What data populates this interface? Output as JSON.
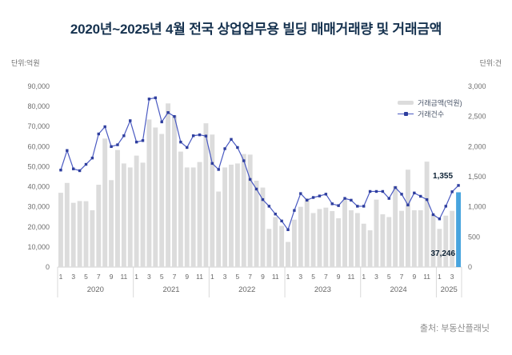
{
  "title": "2020년~2025년 4월 전국 상업업무용 빌딩 매매거래량 및 거래금액",
  "unit_left": "단위:억원",
  "unit_right": "단위:건",
  "source": "출처: 부동산플래닛",
  "legend": {
    "amount_label": "거래금액(억원)",
    "count_label": "거래건수"
  },
  "annotations": {
    "last_count": "1,355",
    "last_amount": "37,246"
  },
  "colors": {
    "bar": "#dcdcdc",
    "bar_highlight": "#48a4de",
    "line": "#4a5ac2",
    "marker": "#2e3e9e",
    "axis_line": "#cfcfcf",
    "separator": "#d9d9d9",
    "tick_text": "#6e6e6e",
    "month_text": "#666666",
    "title_text": "#16324f",
    "annotation_text": "#0d2235"
  },
  "chart_data": {
    "type": "bar",
    "subtype": "bar+line-combo",
    "title": "2020년~2025년 4월 전국 상업업무용 빌딩 매매거래량 및 거래금액",
    "x_groups": [
      {
        "year": "2020",
        "n_months": 12,
        "month_ticks": [
          1,
          3,
          5,
          7,
          9,
          11
        ]
      },
      {
        "year": "2021",
        "n_months": 12,
        "month_ticks": [
          1,
          3,
          5,
          7,
          9,
          11
        ]
      },
      {
        "year": "2022",
        "n_months": 12,
        "month_ticks": [
          1,
          3,
          5,
          7,
          9,
          11
        ]
      },
      {
        "year": "2023",
        "n_months": 12,
        "month_ticks": [
          1,
          3,
          5,
          7,
          9,
          11
        ]
      },
      {
        "year": "2024",
        "n_months": 12,
        "month_ticks": [
          1,
          3,
          5,
          7,
          9,
          11
        ]
      },
      {
        "year": "2025",
        "n_months": 4,
        "month_ticks": [
          1,
          3
        ]
      }
    ],
    "left_axis": {
      "label": "단위:억원",
      "min": 0,
      "max": 90000,
      "step": 10000
    },
    "right_axis": {
      "label": "단위:건",
      "min": 0,
      "max": 3000,
      "step": 500
    },
    "grid": false,
    "legend_position": "top-right",
    "highlight_last_bar": true,
    "last_point_labels": {
      "count": "1,355",
      "amount": "37,246"
    },
    "series": [
      {
        "name": "거래금액(억원)",
        "type": "bar",
        "axis": "left",
        "values": [
          37000,
          41900,
          32000,
          32900,
          32800,
          28300,
          41000,
          64000,
          43300,
          58300,
          51600,
          49600,
          55500,
          52000,
          73500,
          69500,
          66300,
          81500,
          75500,
          57500,
          49600,
          49600,
          52300,
          71600,
          66000,
          37600,
          49600,
          51000,
          51600,
          56300,
          56000,
          43000,
          39600,
          19000,
          24900,
          20500,
          12500,
          23600,
          30000,
          34300,
          26900,
          28900,
          29600,
          27900,
          24300,
          33600,
          28300,
          26900,
          21600,
          18300,
          33600,
          26300,
          24900,
          40300,
          28000,
          48500,
          28300,
          28300,
          52500,
          26300,
          19000,
          25600,
          28000,
          37246
        ]
      },
      {
        "name": "거래건수",
        "type": "line",
        "axis": "right",
        "values": [
          1610,
          1935,
          1630,
          1600,
          1705,
          1810,
          2210,
          2330,
          2000,
          2030,
          2180,
          2430,
          2075,
          2100,
          2790,
          2810,
          2410,
          2565,
          2500,
          2075,
          1985,
          2180,
          2195,
          2175,
          1720,
          1620,
          1965,
          2120,
          1985,
          1765,
          1455,
          1295,
          1120,
          1010,
          880,
          765,
          620,
          940,
          1220,
          1110,
          1155,
          1180,
          1210,
          1050,
          1020,
          1140,
          1110,
          1010,
          1010,
          1255,
          1255,
          1255,
          1140,
          1320,
          1210,
          1030,
          1230,
          1175,
          1120,
          870,
          800,
          1010,
          1250,
          1355
        ]
      }
    ]
  }
}
